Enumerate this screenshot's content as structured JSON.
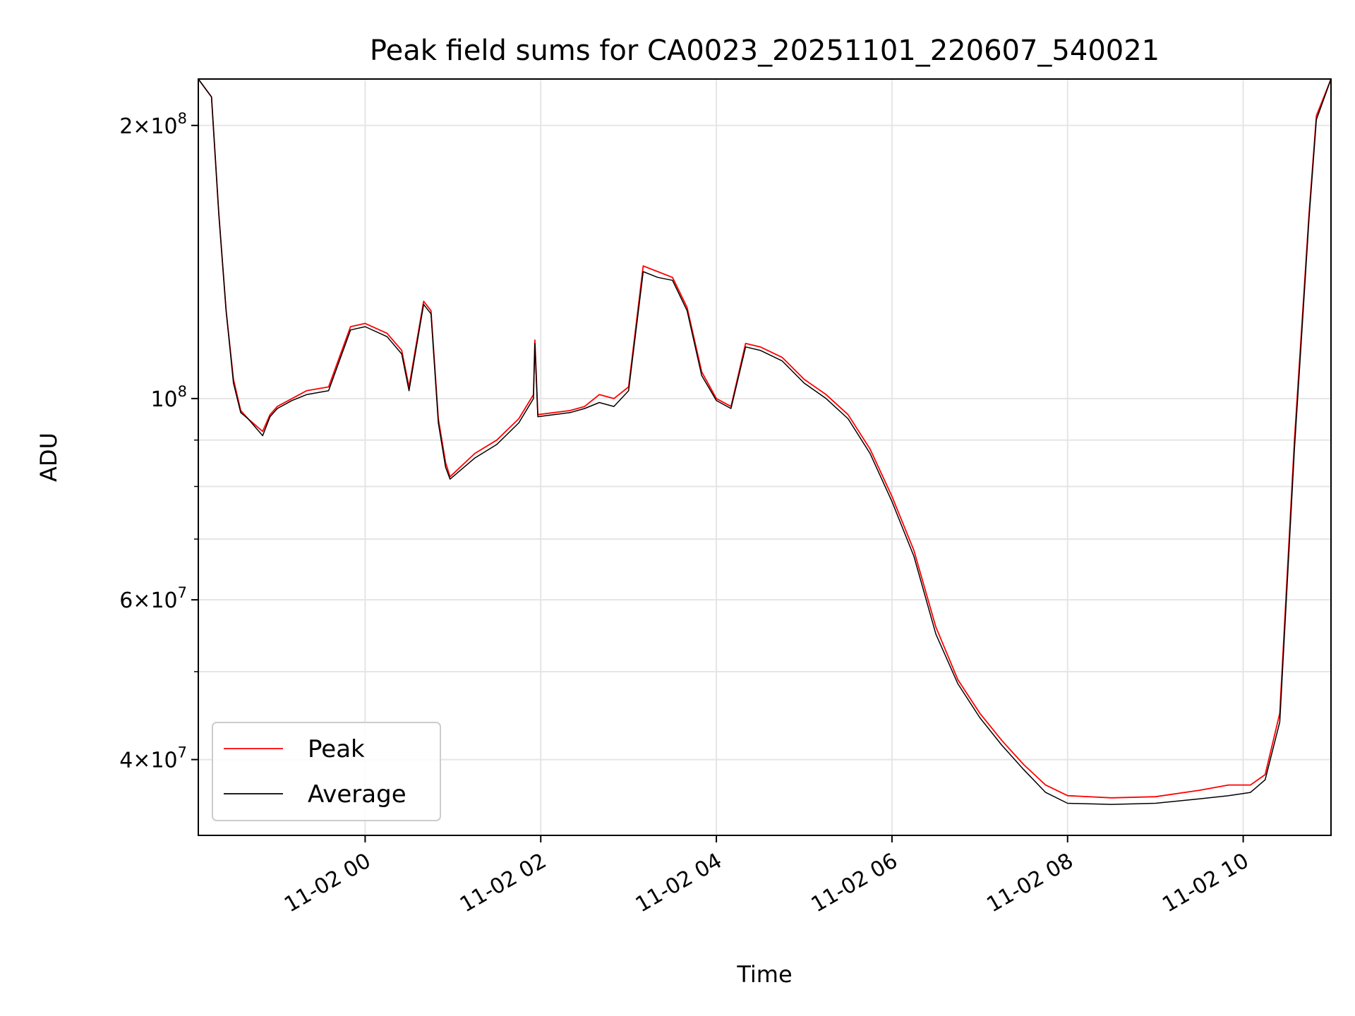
{
  "chart_data": {
    "type": "line",
    "title": "Peak field sums for CA0023_20251101_220607_540021",
    "xlabel": "Time",
    "ylabel": "ADU",
    "yscale": "log",
    "ylim": [
      33000000,
      225000000
    ],
    "xlim": [
      "2025-11-01 22:06",
      "2025-11-02 11:00"
    ],
    "grid": true,
    "legend_position": "lower-left",
    "x_ticks": [
      "11-02 00",
      "11-02 02",
      "11-02 04",
      "11-02 06",
      "11-02 08",
      "11-02 10"
    ],
    "y_ticks": [
      {
        "value": 200000000,
        "mant": "2",
        "exp": "8"
      },
      {
        "value": 100000000,
        "mant": "",
        "exp": "8"
      },
      {
        "value": 60000000,
        "mant": "6",
        "exp": "7"
      },
      {
        "value": 40000000,
        "mant": "4",
        "exp": "7"
      }
    ],
    "x": [
      "2025-11-01 22:06",
      "2025-11-01 22:15",
      "2025-11-01 22:20",
      "2025-11-01 22:25",
      "2025-11-01 22:30",
      "2025-11-01 22:35",
      "2025-11-01 22:40",
      "2025-11-01 22:50",
      "2025-11-01 22:55",
      "2025-11-01 23:00",
      "2025-11-01 23:10",
      "2025-11-01 23:20",
      "2025-11-01 23:35",
      "2025-11-01 23:50",
      "2025-11-02 00:00",
      "2025-11-02 00:15",
      "2025-11-02 00:25",
      "2025-11-02 00:30",
      "2025-11-02 00:35",
      "2025-11-02 00:40",
      "2025-11-02 00:45",
      "2025-11-02 00:50",
      "2025-11-02 00:55",
      "2025-11-02 00:58",
      "2025-11-02 01:15",
      "2025-11-02 01:30",
      "2025-11-02 01:45",
      "2025-11-02 01:55",
      "2025-11-02 01:56",
      "2025-11-02 01:58",
      "2025-11-02 02:20",
      "2025-11-02 02:30",
      "2025-11-02 02:40",
      "2025-11-02 02:50",
      "2025-11-02 03:00",
      "2025-11-02 03:10",
      "2025-11-02 03:20",
      "2025-11-02 03:30",
      "2025-11-02 03:40",
      "2025-11-02 03:50",
      "2025-11-02 04:00",
      "2025-11-02 04:10",
      "2025-11-02 04:20",
      "2025-11-02 04:30",
      "2025-11-02 04:45",
      "2025-11-02 05:00",
      "2025-11-02 05:15",
      "2025-11-02 05:30",
      "2025-11-02 05:45",
      "2025-11-02 06:00",
      "2025-11-02 06:15",
      "2025-11-02 06:30",
      "2025-11-02 06:45",
      "2025-11-02 07:00",
      "2025-11-02 07:15",
      "2025-11-02 07:30",
      "2025-11-02 07:45",
      "2025-11-02 08:00",
      "2025-11-02 08:30",
      "2025-11-02 09:00",
      "2025-11-02 09:30",
      "2025-11-02 09:50",
      "2025-11-02 10:05",
      "2025-11-02 10:15",
      "2025-11-02 10:25",
      "2025-11-02 10:35",
      "2025-11-02 10:45",
      "2025-11-02 10:50",
      "2025-11-02 11:00"
    ],
    "series": [
      {
        "name": "Peak",
        "color": "#ff0000",
        "values": [
          225000000,
          215000000,
          160000000,
          125000000,
          105000000,
          97000000,
          95000000,
          92000000,
          96000000,
          98000000,
          100000000,
          102000000,
          103000000,
          120000000,
          121000000,
          118000000,
          113000000,
          103000000,
          115000000,
          128000000,
          125000000,
          95000000,
          85000000,
          82000000,
          87000000,
          90000000,
          95000000,
          101000000,
          116000000,
          96000000,
          97000000,
          98000000,
          101000000,
          100000000,
          103000000,
          140000000,
          138000000,
          136000000,
          126000000,
          107000000,
          100000000,
          98000000,
          115000000,
          114000000,
          111000000,
          105000000,
          101000000,
          96000000,
          88000000,
          78000000,
          68000000,
          56000000,
          49000000,
          45000000,
          42000000,
          39500000,
          37500000,
          36500000,
          36300000,
          36400000,
          37000000,
          37500000,
          37500000,
          38500000,
          45000000,
          90000000,
          160000000,
          205000000,
          225000000
        ]
      },
      {
        "name": "Average",
        "color": "#000000",
        "values": [
          225000000,
          215000000,
          160000000,
          125000000,
          104000000,
          96500000,
          95000000,
          91000000,
          95500000,
          97500000,
          99500000,
          101000000,
          102000000,
          119000000,
          120000000,
          117000000,
          112000000,
          102000000,
          114000000,
          127000000,
          124000000,
          94000000,
          84000000,
          81500000,
          86000000,
          89000000,
          94000000,
          100000000,
          115000000,
          95500000,
          96500000,
          97500000,
          99000000,
          98000000,
          102000000,
          138000000,
          136000000,
          135000000,
          125000000,
          106000000,
          99500000,
          97500000,
          114000000,
          113000000,
          110000000,
          104000000,
          100000000,
          95000000,
          87000000,
          77000000,
          67000000,
          55000000,
          48500000,
          44500000,
          41500000,
          39000000,
          36800000,
          35800000,
          35700000,
          35800000,
          36200000,
          36500000,
          36800000,
          38000000,
          44000000,
          88000000,
          158000000,
          203000000,
          225000000
        ]
      }
    ]
  }
}
